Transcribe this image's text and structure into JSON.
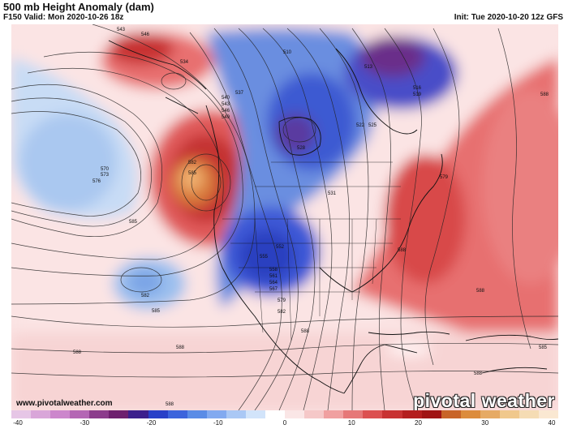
{
  "header": {
    "title": "500 mb Height Anomaly (dam)",
    "valid": "F150 Valid: Mon 2020-10-26 18z",
    "init": "Init: Tue 2020-10-20 12z GFS"
  },
  "footer": {
    "website": "www.pivotalweather.com",
    "logo": "pivotal weather"
  },
  "colorbar": {
    "ticks": [
      "-40",
      "-30",
      "-20",
      "-10",
      "0",
      "10",
      "20",
      "30",
      "40"
    ],
    "colors": [
      "#e6c6e6",
      "#d9a6d9",
      "#cc86cc",
      "#b466b4",
      "#8c3c8c",
      "#6e1f6e",
      "#3c1f8c",
      "#2840c8",
      "#3c64dc",
      "#5a8ce6",
      "#82aaf0",
      "#aac8f5",
      "#d2e4fa",
      "#ffffff",
      "#fae6e6",
      "#f5c8c8",
      "#f0a0a0",
      "#e67878",
      "#dc5050",
      "#c83232",
      "#b41e1e",
      "#a01414",
      "#c86428",
      "#dc8c3c",
      "#e6aa64",
      "#f0c88c",
      "#f5dcb4",
      "#fae8d2"
    ]
  },
  "contour_labels": [
    "543",
    "546",
    "510",
    "513",
    "516",
    "519",
    "588",
    "534",
    "537",
    "540",
    "543",
    "546",
    "549",
    "522",
    "525",
    "528",
    "531",
    "579",
    "582",
    "585",
    "570",
    "573",
    "576",
    "585",
    "588",
    "555",
    "552",
    "558",
    "561",
    "564",
    "567",
    "582",
    "585",
    "588",
    "588",
    "588",
    "588",
    "588",
    "579",
    "582",
    "585",
    "588"
  ]
}
